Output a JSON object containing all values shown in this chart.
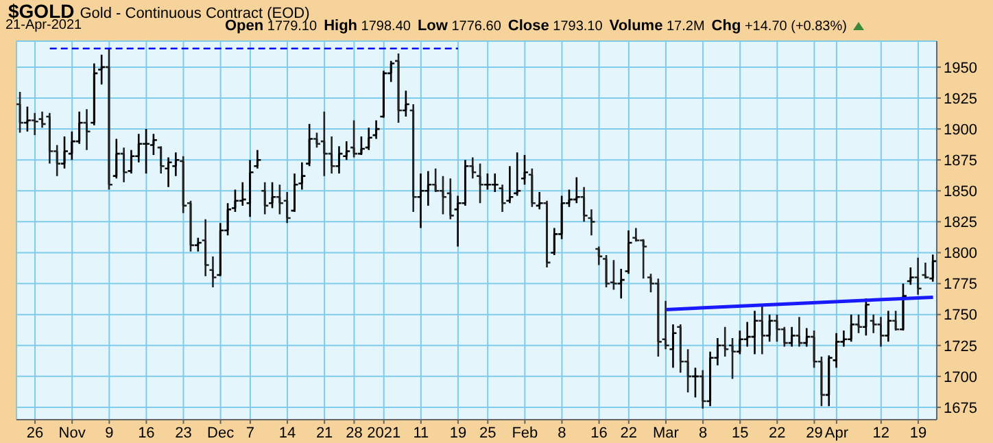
{
  "chart_data": {
    "type": "candlestick",
    "title": "$GOLD",
    "subtitle": "Gold - Continuous Contract (EOD)",
    "annotations": [
      "21-Apr-2021",
      "Open 1779.10",
      "High 1798.40",
      "Low 1776.60",
      "Close 1793.10",
      "Volume 17.2M",
      "Chg +14.70 (+0.83%)"
    ],
    "categories": [
      null,
      null,
      "26",
      null,
      null,
      null,
      null,
      "Nov",
      null,
      null,
      null,
      null,
      "9",
      null,
      null,
      null,
      null,
      "16",
      null,
      null,
      null,
      null,
      "23",
      null,
      null,
      null,
      null,
      "Dec",
      null,
      null,
      null,
      "7",
      null,
      null,
      null,
      null,
      "14",
      null,
      null,
      null,
      null,
      "21",
      null,
      null,
      null,
      "28",
      null,
      null,
      null,
      "2021",
      null,
      null,
      null,
      null,
      "11",
      null,
      null,
      null,
      null,
      "19",
      null,
      null,
      null,
      "25",
      null,
      null,
      null,
      null,
      "Feb",
      null,
      null,
      null,
      null,
      "8",
      null,
      null,
      null,
      null,
      "16",
      null,
      null,
      null,
      "22",
      null,
      null,
      null,
      null,
      "Mar",
      null,
      null,
      null,
      null,
      "8",
      null,
      null,
      null,
      null,
      "15",
      null,
      null,
      null,
      null,
      "22",
      null,
      null,
      null,
      null,
      "29",
      null,
      null,
      "Apr",
      null,
      null,
      null,
      null,
      null,
      "12",
      null,
      null,
      null,
      null,
      "19",
      null,
      null
    ],
    "ohlc": [
      [
        1920,
        1930,
        1897,
        1905
      ],
      [
        1905,
        1918,
        1898,
        1907
      ],
      [
        1907,
        1913,
        1895,
        1906
      ],
      [
        1908,
        1914,
        1901,
        1904
      ],
      [
        1910,
        1913,
        1872,
        1882
      ],
      [
        1882,
        1887,
        1862,
        1872
      ],
      [
        1872,
        1894,
        1868,
        1882
      ],
      [
        1880,
        1898,
        1875,
        1890
      ],
      [
        1890,
        1914,
        1888,
        1905
      ],
      [
        1905,
        1916,
        1883,
        1898
      ],
      [
        1905,
        1953,
        1903,
        1945
      ],
      [
        1948,
        1960,
        1936,
        1950
      ],
      [
        1950,
        1965,
        1851,
        1855
      ],
      [
        1862,
        1892,
        1860,
        1880
      ],
      [
        1880,
        1885,
        1857,
        1865
      ],
      [
        1866,
        1883,
        1864,
        1878
      ],
      [
        1878,
        1896,
        1873,
        1888
      ],
      [
        1888,
        1900,
        1864,
        1888
      ],
      [
        1887,
        1896,
        1879,
        1891
      ],
      [
        1885,
        1886,
        1864,
        1870
      ],
      [
        1868,
        1877,
        1853,
        1873
      ],
      [
        1870,
        1881,
        1862,
        1875
      ],
      [
        1874,
        1878,
        1832,
        1838
      ],
      [
        1840,
        1842,
        1801,
        1806
      ],
      [
        1806,
        1812,
        1801,
        1808
      ],
      [
        1810,
        1827,
        1781,
        1790
      ],
      [
        1786,
        1797,
        1772,
        1780
      ],
      [
        1782,
        1824,
        1781,
        1818
      ],
      [
        1818,
        1840,
        1814,
        1835
      ],
      [
        1836,
        1851,
        1833,
        1842
      ],
      [
        1842,
        1857,
        1838,
        1843
      ],
      [
        1840,
        1875,
        1829,
        1865
      ],
      [
        1870,
        1883,
        1868,
        1875
      ],
      [
        1850,
        1857,
        1831,
        1838
      ],
      [
        1840,
        1857,
        1836,
        1845
      ],
      [
        1845,
        1855,
        1831,
        1840
      ],
      [
        1842,
        1849,
        1824,
        1828
      ],
      [
        1834,
        1864,
        1833,
        1855
      ],
      [
        1856,
        1873,
        1851,
        1862
      ],
      [
        1872,
        1904,
        1870,
        1892
      ],
      [
        1892,
        1897,
        1885,
        1888
      ],
      [
        1890,
        1914,
        1862,
        1880
      ],
      [
        1880,
        1894,
        1864,
        1870
      ],
      [
        1870,
        1886,
        1864,
        1880
      ],
      [
        1878,
        1890,
        1875,
        1882
      ],
      [
        1885,
        1907,
        1877,
        1880
      ],
      [
        1880,
        1894,
        1879,
        1884
      ],
      [
        1885,
        1901,
        1883,
        1893
      ],
      [
        1895,
        1907,
        1892,
        1900
      ],
      [
        1910,
        1947,
        1909,
        1945
      ],
      [
        1945,
        1955,
        1938,
        1953
      ],
      [
        1955,
        1961,
        1905,
        1915
      ],
      [
        1915,
        1931,
        1910,
        1920
      ],
      [
        1915,
        1920,
        1833,
        1845
      ],
      [
        1845,
        1864,
        1820,
        1850
      ],
      [
        1850,
        1866,
        1838,
        1855
      ],
      [
        1855,
        1868,
        1849,
        1850
      ],
      [
        1850,
        1862,
        1831,
        1845
      ],
      [
        1848,
        1860,
        1827,
        1830
      ],
      [
        1835,
        1846,
        1805,
        1840
      ],
      [
        1840,
        1875,
        1838,
        1870
      ],
      [
        1870,
        1877,
        1860,
        1865
      ],
      [
        1862,
        1872,
        1840,
        1855
      ],
      [
        1855,
        1864,
        1851,
        1855
      ],
      [
        1855,
        1864,
        1849,
        1855
      ],
      [
        1852,
        1855,
        1833,
        1840
      ],
      [
        1842,
        1870,
        1840,
        1845
      ],
      [
        1848,
        1881,
        1846,
        1850
      ],
      [
        1860,
        1879,
        1855,
        1865
      ],
      [
        1863,
        1868,
        1837,
        1840
      ],
      [
        1838,
        1849,
        1835,
        1840
      ],
      [
        1840,
        1842,
        1788,
        1792
      ],
      [
        1800,
        1820,
        1798,
        1815
      ],
      [
        1815,
        1846,
        1811,
        1840
      ],
      [
        1840,
        1851,
        1837,
        1843
      ],
      [
        1843,
        1861,
        1840,
        1845
      ],
      [
        1845,
        1853,
        1825,
        1830
      ],
      [
        1828,
        1835,
        1814,
        1825
      ],
      [
        1803,
        1805,
        1790,
        1797
      ],
      [
        1795,
        1798,
        1772,
        1775
      ],
      [
        1776,
        1794,
        1770,
        1775
      ],
      [
        1775,
        1787,
        1763,
        1778
      ],
      [
        1785,
        1818,
        1783,
        1808
      ],
      [
        1812,
        1820,
        1809,
        1810
      ],
      [
        1810,
        1811,
        1779,
        1805
      ],
      [
        1780,
        1783,
        1768,
        1775
      ],
      [
        1775,
        1779,
        1716,
        1728
      ],
      [
        1730,
        1761,
        1722,
        1725
      ],
      [
        1722,
        1742,
        1707,
        1735
      ],
      [
        1740,
        1742,
        1703,
        1712
      ],
      [
        1712,
        1722,
        1687,
        1700
      ],
      [
        1700,
        1707,
        1683,
        1700
      ],
      [
        1700,
        1705,
        1674,
        1680
      ],
      [
        1680,
        1720,
        1676,
        1715
      ],
      [
        1715,
        1731,
        1709,
        1725
      ],
      [
        1725,
        1740,
        1716,
        1722
      ],
      [
        1725,
        1731,
        1698,
        1720
      ],
      [
        1720,
        1737,
        1718,
        1730
      ],
      [
        1730,
        1744,
        1724,
        1732
      ],
      [
        1732,
        1753,
        1718,
        1745
      ],
      [
        1745,
        1757,
        1718,
        1733
      ],
      [
        1733,
        1750,
        1728,
        1745
      ],
      [
        1745,
        1750,
        1728,
        1738
      ],
      [
        1738,
        1740,
        1724,
        1727
      ],
      [
        1727,
        1740,
        1724,
        1733
      ],
      [
        1733,
        1748,
        1724,
        1727
      ],
      [
        1727,
        1739,
        1724,
        1732
      ],
      [
        1732,
        1737,
        1707,
        1712
      ],
      [
        1712,
        1716,
        1676,
        1685
      ],
      [
        1685,
        1717,
        1676,
        1715
      ],
      [
        1713,
        1735,
        1707,
        1728
      ],
      [
        1728,
        1737,
        1724,
        1730
      ],
      [
        1730,
        1750,
        1728,
        1742
      ],
      [
        1742,
        1750,
        1735,
        1740
      ],
      [
        1740,
        1763,
        1733,
        1758
      ],
      [
        1745,
        1750,
        1735,
        1742
      ],
      [
        1742,
        1748,
        1724,
        1733
      ],
      [
        1733,
        1753,
        1728,
        1745
      ],
      [
        1745,
        1753,
        1737,
        1738
      ],
      [
        1738,
        1775,
        1737,
        1765
      ],
      [
        1777,
        1788,
        1774,
        1780
      ],
      [
        1780,
        1796,
        1766,
        1771
      ],
      [
        1782,
        1792,
        1779,
        1780
      ],
      [
        1779.1,
        1798.4,
        1776.6,
        1793.1
      ]
    ],
    "series": [
      {
        "type": "line",
        "color": "#0000ff",
        "line_style": "dashed",
        "values": [
          null,
          null,
          null,
          null,
          1965,
          1965,
          1965,
          1965,
          1965,
          1965,
          1965,
          1965,
          1965,
          1965,
          1965,
          1965,
          1965,
          1965,
          1965,
          1965,
          1965,
          1965,
          1965,
          1965,
          1965,
          1965,
          1965,
          1965,
          1965,
          1965,
          1965,
          1965,
          1965,
          1965,
          1965,
          1965,
          1965,
          1965,
          1965,
          1965,
          1965,
          1965,
          1965,
          1965,
          1965,
          1965,
          1965,
          1965,
          1965,
          1965,
          1965,
          1965,
          1965,
          1965,
          1965,
          1965,
          1965,
          1965,
          1965,
          1965,
          null,
          null,
          null,
          null,
          null,
          null,
          null,
          null,
          null,
          null,
          null,
          null,
          null,
          null,
          null,
          null,
          null,
          null,
          null,
          null,
          null,
          null,
          null,
          null,
          null,
          null,
          null,
          null,
          null,
          null,
          null,
          null,
          null,
          null,
          null,
          null,
          null,
          null,
          null,
          null,
          null,
          null,
          null,
          null,
          null,
          null,
          null,
          null,
          null,
          null,
          null,
          null,
          null,
          null,
          null,
          null,
          null,
          null,
          null,
          null,
          null,
          null,
          null,
          null
        ]
      },
      {
        "type": "line",
        "color": "#1a1aff",
        "line_style": "solid",
        "values": [
          null,
          null,
          null,
          null,
          null,
          null,
          null,
          null,
          null,
          null,
          null,
          null,
          null,
          null,
          null,
          null,
          null,
          null,
          null,
          null,
          null,
          null,
          null,
          null,
          null,
          null,
          null,
          null,
          null,
          null,
          null,
          null,
          null,
          null,
          null,
          null,
          null,
          null,
          null,
          null,
          null,
          null,
          null,
          null,
          null,
          null,
          null,
          null,
          null,
          null,
          null,
          null,
          null,
          null,
          null,
          null,
          null,
          null,
          null,
          null,
          null,
          null,
          null,
          null,
          null,
          null,
          null,
          null,
          null,
          null,
          null,
          null,
          null,
          null,
          null,
          null,
          null,
          null,
          null,
          null,
          null,
          null,
          null,
          null,
          null,
          null,
          null,
          1754,
          null,
          null,
          null,
          null,
          null,
          null,
          null,
          null,
          null,
          null,
          null,
          null,
          null,
          null,
          null,
          null,
          null,
          null,
          null,
          null,
          null,
          null,
          null,
          null,
          null,
          null,
          null,
          null,
          null,
          null,
          null,
          null,
          null,
          null,
          null,
          1764
        ]
      }
    ],
    "ylim": [
      1665,
      1971
    ],
    "yticks": [
      1675,
      1700,
      1725,
      1750,
      1775,
      1800,
      1825,
      1850,
      1875,
      1900,
      1925,
      1950
    ],
    "grid": true
  }
}
